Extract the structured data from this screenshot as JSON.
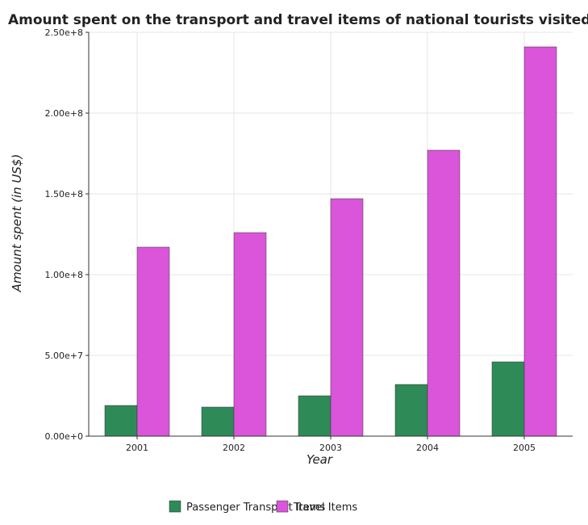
{
  "chart_data": {
    "type": "bar",
    "title": "Amount spent on the transport and travel items of national tourists visited",
    "xlabel": "Year",
    "ylabel": "Amount spent (in US$)",
    "categories": [
      "2001",
      "2002",
      "2003",
      "2004",
      "2005"
    ],
    "series": [
      {
        "name": "Passenger Transport Items",
        "color": "#2e8b57",
        "values": [
          19000000,
          18000000,
          25000000,
          32000000,
          46000000
        ]
      },
      {
        "name": "Travel Items",
        "color": "#da55da",
        "values": [
          117000000,
          126000000,
          147000000,
          177000000,
          241000000
        ]
      }
    ],
    "ylim": [
      0,
      250000000
    ],
    "yticks": [
      {
        "value": 0,
        "label": "0.00e+0"
      },
      {
        "value": 50000000,
        "label": "5.00e+7"
      },
      {
        "value": 100000000,
        "label": "1.00e+8"
      },
      {
        "value": 150000000,
        "label": "1.50e+8"
      },
      {
        "value": 200000000,
        "label": "2.00e+8"
      },
      {
        "value": 250000000,
        "label": "2.50e+8"
      }
    ],
    "grid": true,
    "legend": "bottom-center"
  }
}
